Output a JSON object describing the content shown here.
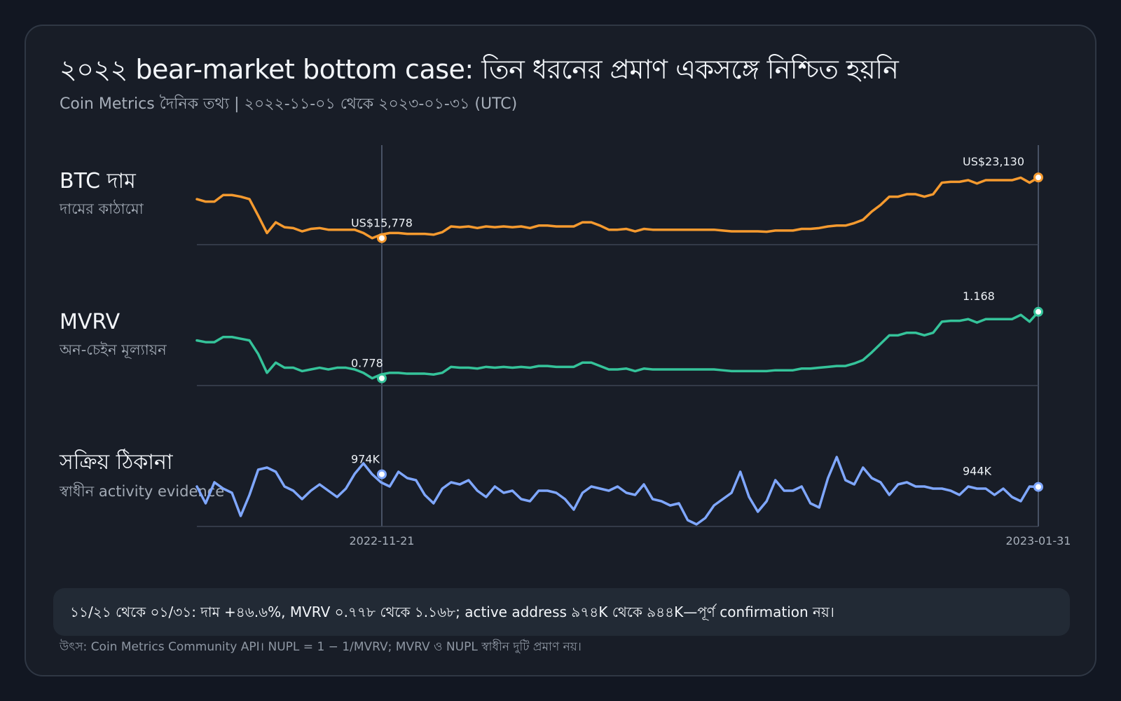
{
  "title": "২০২২ bear-market bottom case: তিন ধরনের প্রমাণ একসঙ্গে নিশ্চিত হয়নি",
  "subtitle": "Coin Metrics দৈনিক তথ্য | ২০২২-১১-০১ থেকে ২০২৩-০১-৩১ (UTC)",
  "note": "১১/২১ থেকে ০১/৩১: দাম +৪৬.৬%, MVRV ০.৭৭৮ থেকে ১.১৬৮; active address ৯৭৪K থেকে ৯৪৪K—পূর্ণ confirmation নয়।",
  "source": "উৎস: Coin Metrics Community API। NUPL = 1 − 1/MVRV; MVRV ও NUPL স্বাধীন দুটি প্রমাণ নয়।",
  "colors": {
    "price": "#f59a2f",
    "mvrv": "#35c39a",
    "active": "#7fa7ff",
    "grid": "#3c4554",
    "marker_fill": "#ffffff"
  },
  "chart_data": {
    "type": "line",
    "x_range": [
      "2022-11-01",
      "2023-01-31"
    ],
    "x_ticks": [
      "2022-11-21",
      "2023-01-31"
    ],
    "highlight_dates": [
      "2022-11-21",
      "2023-01-31"
    ],
    "grid": true,
    "panels": [
      {
        "key": "price",
        "title": "BTC দাম",
        "subtitle": "দামের কাঠামো",
        "color": "#f59a2f",
        "start_label": "US$15,778",
        "end_label": "US$23,130",
        "start_value": 15778,
        "end_value": 23130,
        "min": 15500,
        "max": 24500,
        "values": [
          20500,
          20200,
          20200,
          21000,
          21000,
          20800,
          20500,
          18500,
          16400,
          17700,
          17100,
          17000,
          16600,
          16900,
          17000,
          16800,
          16800,
          16800,
          16800,
          16400,
          15778,
          16200,
          16400,
          16400,
          16300,
          16300,
          16300,
          16200,
          16500,
          17200,
          17100,
          17200,
          17000,
          17200,
          17100,
          17200,
          17100,
          17200,
          17000,
          17300,
          17300,
          17200,
          17200,
          17200,
          17700,
          17700,
          17300,
          16800,
          16800,
          16900,
          16600,
          16900,
          16800,
          16800,
          16800,
          16800,
          16800,
          16800,
          16800,
          16800,
          16700,
          16600,
          16600,
          16600,
          16600,
          16550,
          16700,
          16700,
          16700,
          16900,
          16900,
          17000,
          17200,
          17300,
          17300,
          17600,
          18000,
          19000,
          19800,
          20800,
          20800,
          21100,
          21100,
          20800,
          21100,
          22500,
          22600,
          22600,
          22800,
          22400,
          22800,
          22800,
          22800,
          22800,
          23100,
          22500,
          23130
        ]
      },
      {
        "key": "mvrv",
        "title": "MVRV",
        "subtitle": "অন-চেইন মূল্যায়ন",
        "color": "#35c39a",
        "start_label": "0.778",
        "end_label": "1.168",
        "start_value": 0.778,
        "end_value": 1.168,
        "min": 0.76,
        "max": 1.2,
        "values": [
          1.0,
          0.99,
          0.99,
          1.02,
          1.02,
          1.01,
          1.0,
          0.92,
          0.81,
          0.87,
          0.84,
          0.84,
          0.82,
          0.83,
          0.84,
          0.83,
          0.84,
          0.84,
          0.83,
          0.81,
          0.778,
          0.8,
          0.81,
          0.81,
          0.805,
          0.805,
          0.805,
          0.8,
          0.81,
          0.845,
          0.84,
          0.84,
          0.835,
          0.845,
          0.84,
          0.845,
          0.84,
          0.845,
          0.84,
          0.85,
          0.85,
          0.845,
          0.845,
          0.845,
          0.87,
          0.87,
          0.85,
          0.83,
          0.83,
          0.835,
          0.82,
          0.835,
          0.83,
          0.83,
          0.83,
          0.83,
          0.83,
          0.83,
          0.83,
          0.83,
          0.825,
          0.82,
          0.82,
          0.82,
          0.82,
          0.82,
          0.825,
          0.825,
          0.825,
          0.835,
          0.835,
          0.84,
          0.845,
          0.85,
          0.85,
          0.865,
          0.885,
          0.93,
          0.98,
          1.03,
          1.03,
          1.045,
          1.045,
          1.03,
          1.045,
          1.11,
          1.115,
          1.115,
          1.125,
          1.105,
          1.125,
          1.125,
          1.125,
          1.125,
          1.15,
          1.11,
          1.168
        ]
      },
      {
        "key": "active",
        "title": "সক্রিয় ঠিকানা",
        "subtitle": "স্বাধীন activity evidence",
        "color": "#7fa7ff",
        "start_label": "974K",
        "end_label": "944K",
        "start_value": 974,
        "end_value": 944,
        "min": 860,
        "max": 1040,
        "values": [
          945,
          905,
          955,
          940,
          930,
          875,
          925,
          985,
          990,
          980,
          945,
          935,
          915,
          935,
          950,
          935,
          920,
          940,
          975,
          1000,
          974,
          955,
          945,
          980,
          965,
          960,
          925,
          905,
          940,
          955,
          950,
          960,
          935,
          920,
          945,
          930,
          935,
          915,
          910,
          935,
          935,
          930,
          915,
          890,
          930,
          945,
          940,
          935,
          945,
          930,
          925,
          950,
          915,
          910,
          900,
          905,
          865,
          855,
          870,
          900,
          915,
          930,
          980,
          920,
          885,
          910,
          960,
          935,
          935,
          945,
          905,
          895,
          965,
          1015,
          960,
          950,
          990,
          965,
          955,
          925,
          950,
          955,
          945,
          945,
          940,
          940,
          935,
          925,
          945,
          940,
          940,
          925,
          940,
          920,
          910,
          945,
          944
        ]
      }
    ]
  }
}
